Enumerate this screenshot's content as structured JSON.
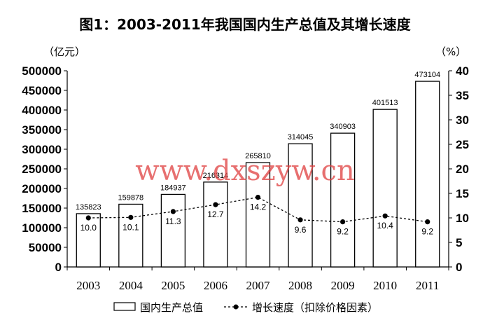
{
  "chart_data": {
    "type": "bar",
    "title": "图1：2003-2011年我国国内生产总值及其增长速度",
    "left_unit": "（亿元）",
    "right_unit": "（%）",
    "categories": [
      "2003",
      "2004",
      "2005",
      "2006",
      "2007",
      "2008",
      "2009",
      "2010",
      "2011"
    ],
    "series": [
      {
        "name": "国内生产总值",
        "type": "bar",
        "axis": "left",
        "values": [
          135823,
          159878,
          184937,
          216314,
          265810,
          314045,
          340903,
          401513,
          473104
        ],
        "labels": [
          "135823",
          "159878",
          "184937",
          "216314",
          "265810",
          "314045",
          "340903",
          "401513",
          "473104"
        ]
      },
      {
        "name": "增长速度（扣除价格因素）",
        "type": "line",
        "axis": "right",
        "values": [
          10.0,
          10.1,
          11.3,
          12.7,
          14.2,
          9.6,
          9.2,
          10.4,
          9.2
        ],
        "labels": [
          "10.0",
          "10.1",
          "11.3",
          "12.7",
          "14.2",
          "9.6",
          "9.2",
          "10.4",
          "9.2"
        ]
      }
    ],
    "ylim_left": [
      0,
      500000
    ],
    "yticks_left": [
      "0",
      "50000",
      "100000",
      "150000",
      "200000",
      "250000",
      "300000",
      "350000",
      "400000",
      "450000",
      "500000"
    ],
    "ylim_right": [
      0,
      40
    ],
    "yticks_right": [
      "0",
      "5",
      "10",
      "15",
      "20",
      "25",
      "30",
      "35",
      "40"
    ],
    "grid": false,
    "legend": "bottom"
  },
  "watermark": "www.dxszyw.cn",
  "colors": {
    "bar_fill": "#ffffff",
    "bar_stroke": "#000000",
    "line": "#000000",
    "watermark": "#e04040"
  }
}
